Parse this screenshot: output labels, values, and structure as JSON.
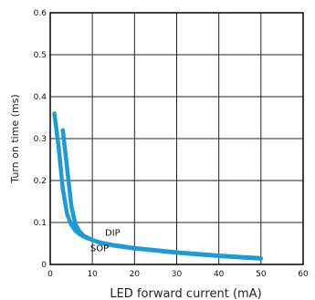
{
  "chart_data": {
    "type": "line",
    "xlabel": "LED forward current (mA)",
    "ylabel": "Turn on time (ms)",
    "xlim": [
      0,
      60
    ],
    "ylim": [
      0,
      0.6
    ],
    "x_ticks": [
      "0",
      "10",
      "20",
      "30",
      "40",
      "50",
      "60"
    ],
    "y_ticks": [
      "0",
      "0.1",
      "0.2",
      "0.3",
      "0.4",
      "0.5",
      "0.6"
    ],
    "grid": true,
    "line_color": "#1e9bd7",
    "series": [
      {
        "name": "DIP",
        "x": [
          1,
          2,
          3,
          4,
          5,
          6,
          7,
          8,
          10,
          12,
          15,
          20,
          25,
          30,
          35,
          40,
          45,
          50
        ],
        "y": [
          0.36,
          0.28,
          0.18,
          0.12,
          0.095,
          0.08,
          0.072,
          0.066,
          0.058,
          0.052,
          0.046,
          0.039,
          0.034,
          0.029,
          0.025,
          0.021,
          0.018,
          0.015
        ]
      },
      {
        "name": "SOP",
        "x": [
          3,
          4,
          5,
          6,
          7,
          8,
          10,
          12,
          15,
          20,
          25,
          30,
          35,
          40,
          45,
          50
        ],
        "y": [
          0.32,
          0.23,
          0.14,
          0.095,
          0.078,
          0.068,
          0.058,
          0.051,
          0.045,
          0.038,
          0.033,
          0.028,
          0.024,
          0.02,
          0.017,
          0.014
        ]
      }
    ]
  }
}
